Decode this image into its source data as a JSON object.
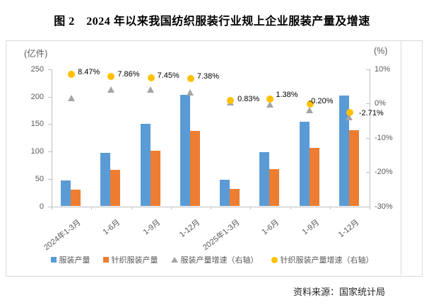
{
  "title": "图 2　2024 年以来我国纺织服装行业规上企业服装产量及增速",
  "source": "资料来源：国家统计局",
  "chart_data": {
    "type": "bar",
    "subtype": "combo-bar-scatter-dual-axis",
    "grid": false,
    "legend_position": "bottom",
    "left_axis": {
      "label": "(亿件)",
      "min": 0,
      "max": 250,
      "ticks": [
        "250",
        "200",
        "150",
        "100",
        "50",
        "0"
      ]
    },
    "right_axis": {
      "label": "(%)",
      "min": -30,
      "max": 10,
      "ticks": [
        "10%",
        "0%",
        "-10%",
        "-20%",
        "-30%"
      ]
    },
    "categories": [
      "2024年1-3月",
      "1-6月",
      "1-9月",
      "1-12月",
      "2025年1-3月",
      "1-6月",
      "1-9月",
      "1-12月"
    ],
    "series": [
      {
        "name": "服装产量",
        "type": "bar",
        "axis": "left",
        "color": "#5B9BD5",
        "values": [
          47,
          98,
          150,
          204,
          48,
          99,
          155,
          202
        ]
      },
      {
        "name": "针织服装产量",
        "type": "bar",
        "axis": "left",
        "color": "#ED7D31",
        "values": [
          31,
          67,
          102,
          138,
          32,
          68,
          107,
          139
        ]
      },
      {
        "name": "服装产量增速（右轴）",
        "type": "scatter",
        "marker": "triangle",
        "axis": "right",
        "color": "#A5A5A5",
        "values": [
          1.7,
          4.1,
          4.1,
          3.3,
          0.4,
          -0.3,
          -1.8,
          -4.0
        ]
      },
      {
        "name": "针织服装产量增速（右轴）",
        "type": "scatter",
        "marker": "circle",
        "axis": "right",
        "color": "#FFC000",
        "values": [
          8.47,
          7.86,
          7.45,
          7.38,
          0.83,
          1.38,
          -0.2,
          -2.71
        ],
        "labels": [
          "8.47%",
          "7.86%",
          "7.45%",
          "7.38%",
          "0.83%",
          "1.38%",
          "-0.20%",
          "-2.71%"
        ]
      }
    ]
  }
}
